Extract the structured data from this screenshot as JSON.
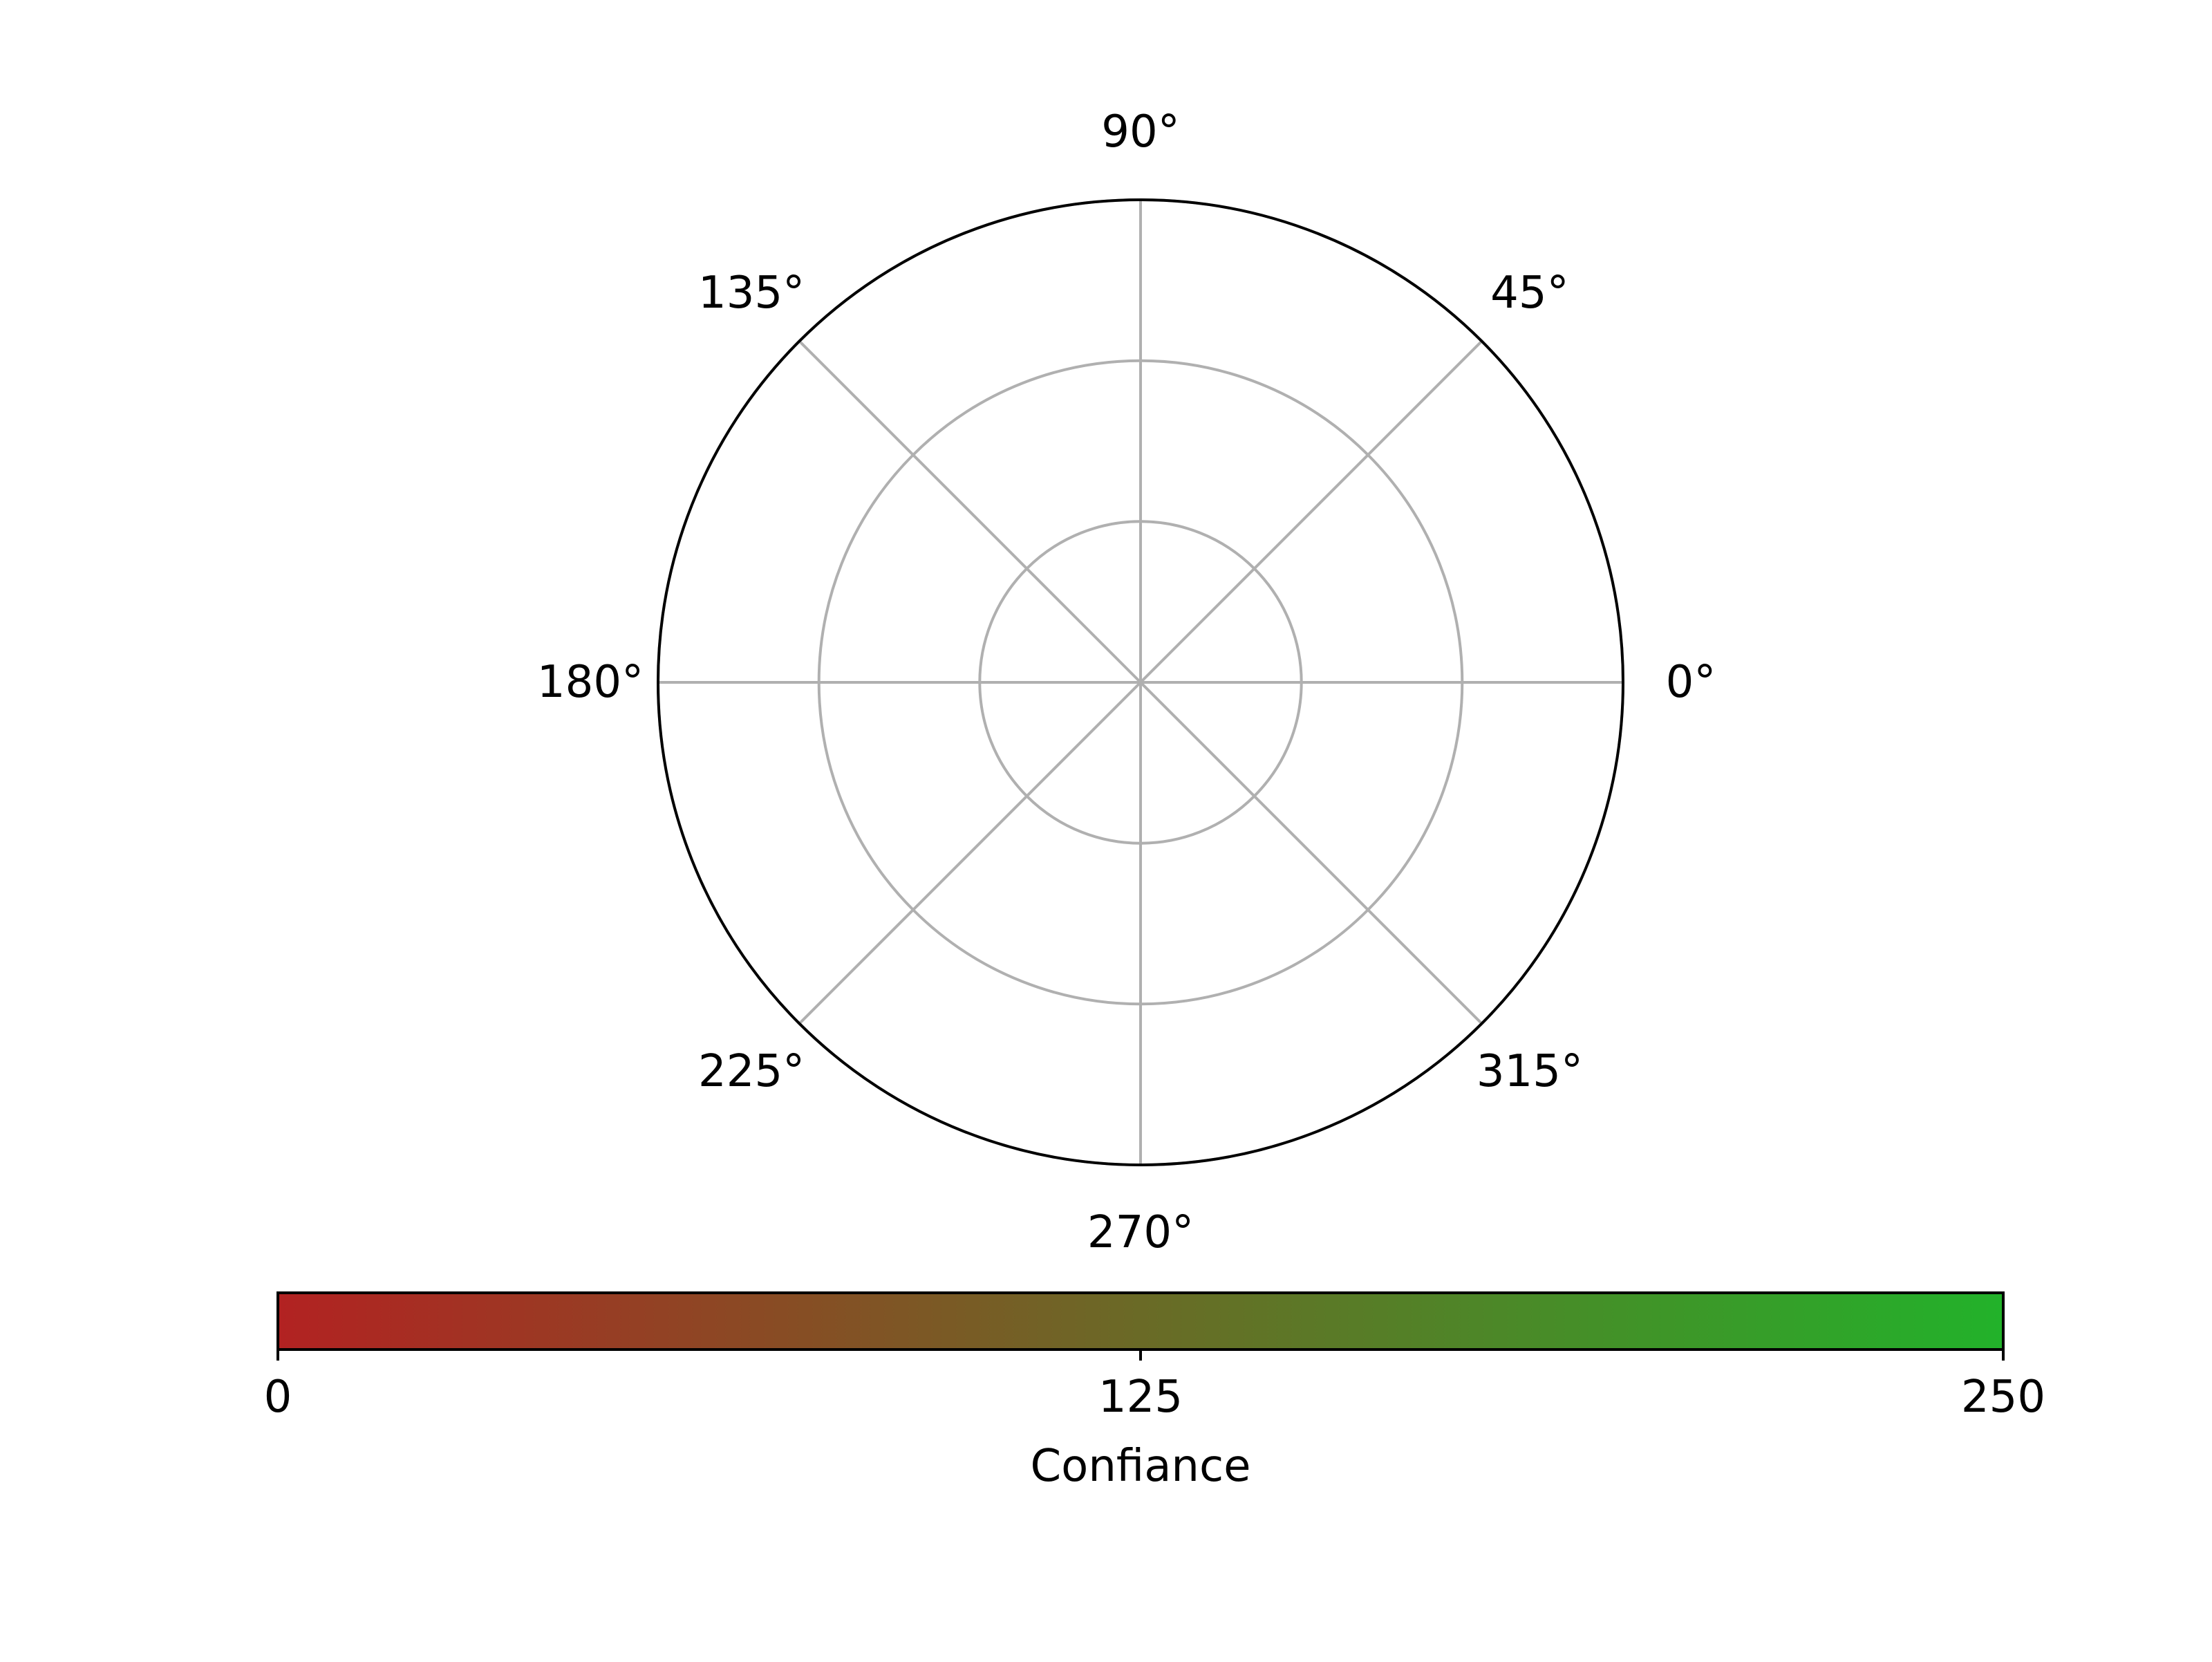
{
  "chart_data": {
    "type": "polar",
    "angular_ticks": [
      "0°",
      "45°",
      "90°",
      "135°",
      "180°",
      "225°",
      "270°",
      "315°"
    ],
    "angular_tick_values": [
      0,
      45,
      90,
      135,
      180,
      225,
      270,
      315
    ],
    "radial_grid_count": 3,
    "grid": true,
    "series": [],
    "colorbar": {
      "label": "Confiance",
      "range": [
        0,
        250
      ],
      "ticks": [
        "0",
        "125",
        "250"
      ],
      "tick_values": [
        0,
        125,
        250
      ],
      "color_low": "#b22222",
      "color_high": "#22b22a",
      "orientation": "horizontal"
    }
  }
}
